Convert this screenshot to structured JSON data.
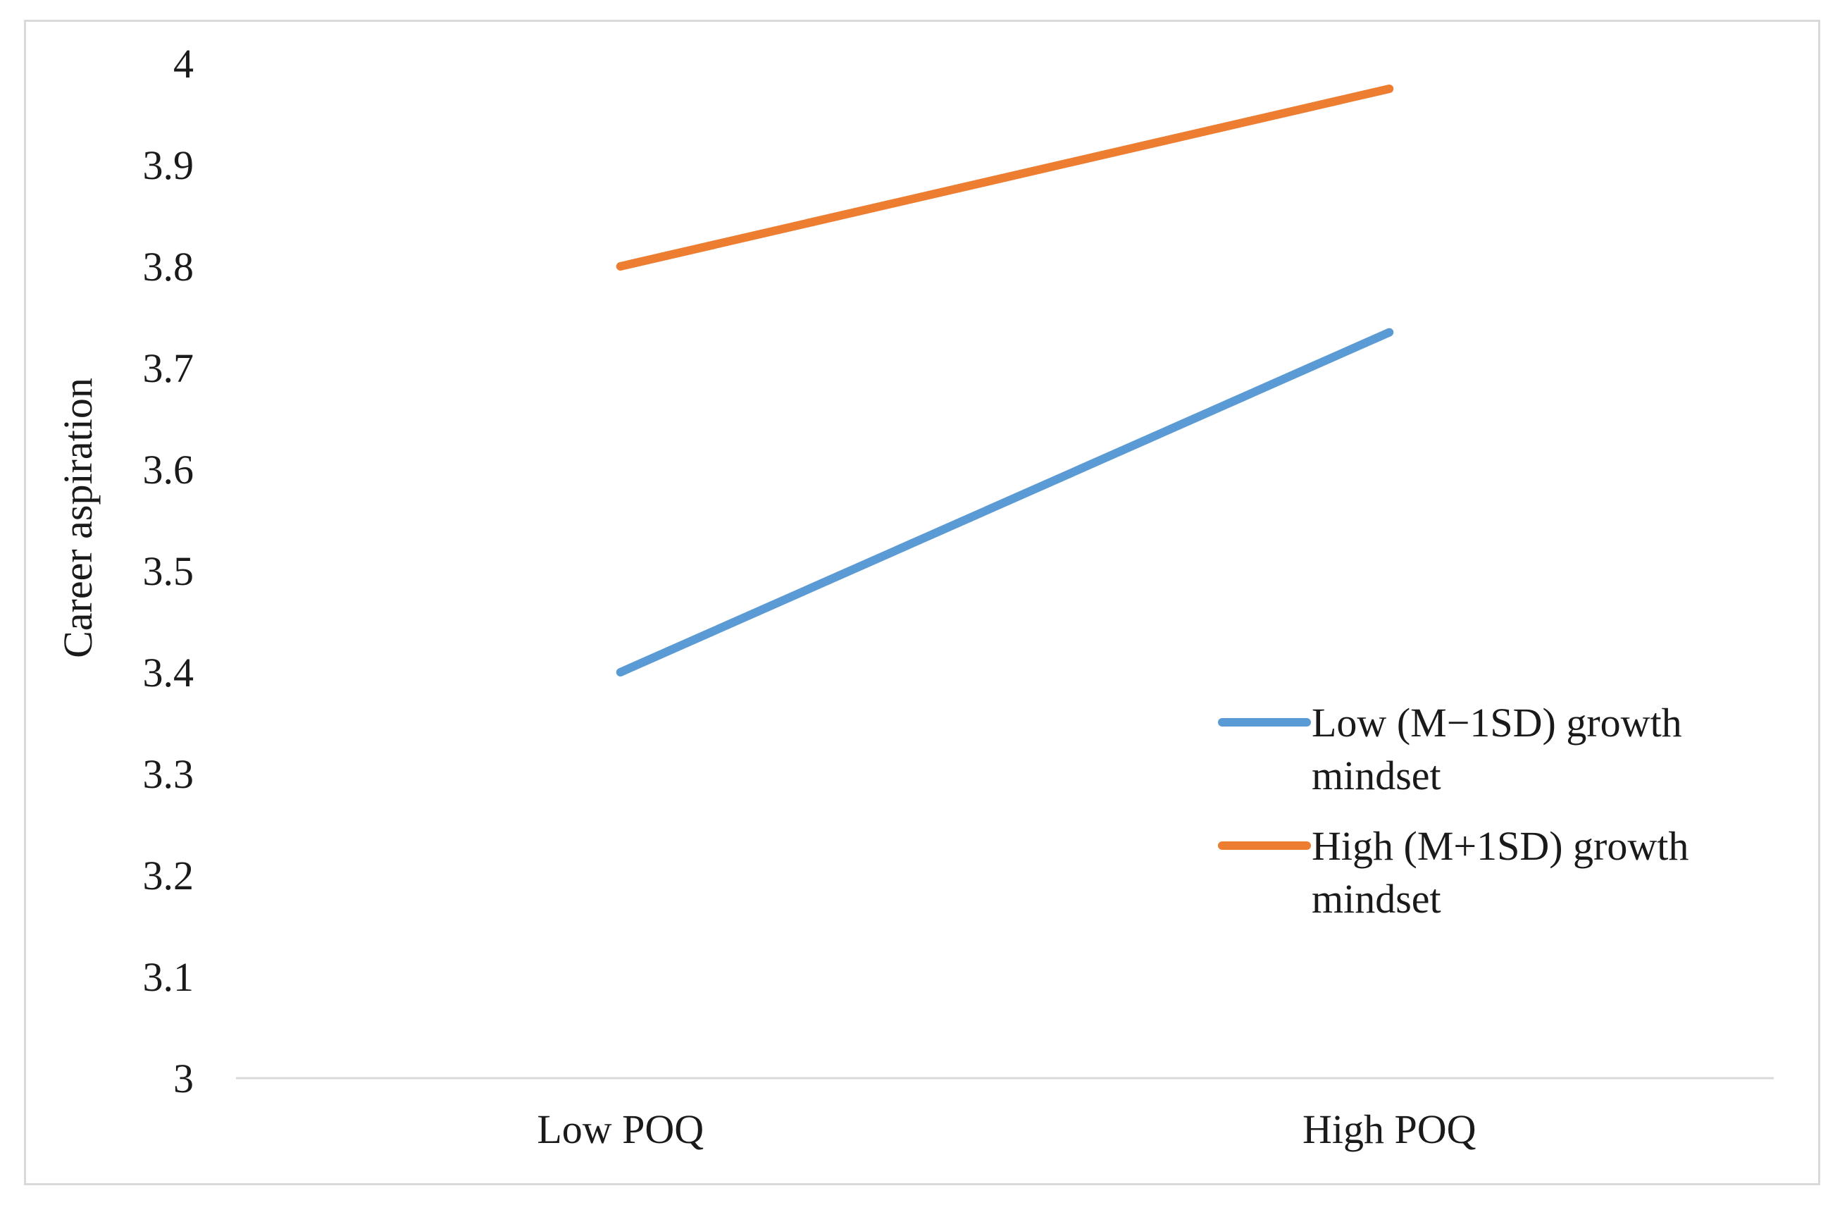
{
  "chart_data": {
    "type": "line",
    "categories": [
      "Low POQ",
      "High POQ"
    ],
    "series": [
      {
        "name": [
          "Low (M−1SD) growth",
          "mindset"
        ],
        "values": [
          3.4,
          3.735
        ],
        "color": "#5b9bd5"
      },
      {
        "name": [
          "High (M+1SD) growth",
          "mindset"
        ],
        "values": [
          3.8,
          3.975
        ],
        "color": "#ed7d31"
      }
    ],
    "ylabel": "Career aspiration",
    "xlabel": "",
    "ylim": [
      3,
      4
    ],
    "yticks": [
      "3",
      "3.1",
      "3.2",
      "3.3",
      "3.4",
      "3.5",
      "3.6",
      "3.7",
      "3.8",
      "3.9",
      "4"
    ],
    "grid": false,
    "legend_position": "right"
  }
}
